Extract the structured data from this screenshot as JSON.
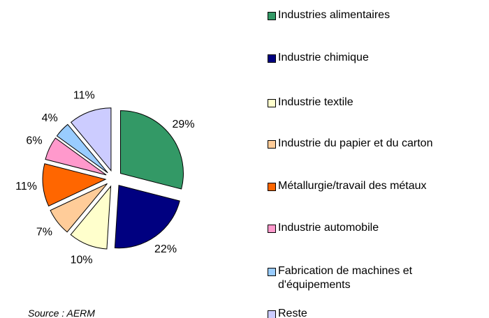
{
  "chart_data": {
    "type": "pie",
    "categories": [
      "Industries alimentaires",
      "Industrie chimique",
      "Industrie textile",
      "Industrie du papier et du carton",
      "Métallurgie/travail des métaux",
      "Industrie automobile",
      "Fabrication de machines et d'équipements",
      "Reste"
    ],
    "values": [
      29,
      22,
      10,
      7,
      11,
      6,
      4,
      11
    ],
    "value_labels": [
      "29%",
      "22%",
      "10%",
      "7%",
      "11%",
      "6%",
      "4%",
      "11%"
    ],
    "colors": [
      "#339966",
      "#000080",
      "#ffffcc",
      "#ffcc99",
      "#ff6600",
      "#ff99cc",
      "#99ccff",
      "#ccccff"
    ],
    "exploded": true,
    "legend": "right",
    "source": "Source : AERM"
  }
}
